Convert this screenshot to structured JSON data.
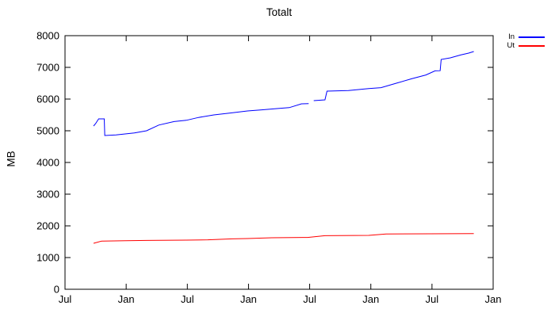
{
  "chart_data": {
    "type": "line",
    "title": "Totalt",
    "xlabel": "",
    "ylabel": "MB",
    "xlim_months": [
      0,
      42
    ],
    "ylim": [
      0,
      8000
    ],
    "x_ticks": {
      "positions": [
        0,
        6,
        12,
        18,
        24,
        30,
        36,
        42
      ],
      "labels": [
        "Jul",
        "Jan",
        "Jul",
        "Jan",
        "Jul",
        "Jan",
        "Jul",
        "Jan"
      ]
    },
    "y_ticks": [
      0,
      1000,
      2000,
      3000,
      4000,
      5000,
      6000,
      7000,
      8000
    ],
    "grid": false,
    "legend_position": "outside-top-right",
    "series": [
      {
        "name": "In",
        "color": "#0000ff",
        "points": [
          [
            2.8,
            5150
          ],
          [
            3.0,
            5225
          ],
          [
            3.3,
            5375
          ],
          [
            3.85,
            5375
          ],
          [
            3.9,
            4850
          ],
          [
            5.0,
            4870
          ],
          [
            5.9,
            4900
          ],
          [
            6.8,
            4930
          ],
          [
            8.0,
            5000
          ],
          [
            9.2,
            5180
          ],
          [
            10.7,
            5290
          ],
          [
            11.9,
            5330
          ],
          [
            13.1,
            5420
          ],
          [
            14.6,
            5500
          ],
          [
            16.2,
            5560
          ],
          [
            17.9,
            5625
          ],
          [
            19.3,
            5660
          ],
          [
            20.8,
            5700
          ],
          [
            22.0,
            5730
          ],
          [
            23.2,
            5850
          ],
          [
            23.9,
            5855
          ],
          null,
          [
            24.4,
            5950
          ],
          [
            25.5,
            5975
          ],
          [
            25.7,
            6250
          ],
          [
            27.8,
            6270
          ],
          [
            29.8,
            6330
          ],
          [
            31.0,
            6360
          ],
          [
            32.5,
            6500
          ],
          [
            34.0,
            6640
          ],
          [
            35.4,
            6760
          ],
          [
            36.3,
            6890
          ],
          [
            36.8,
            6895
          ],
          [
            36.9,
            7250
          ],
          [
            37.8,
            7300
          ],
          [
            38.8,
            7390
          ],
          [
            39.6,
            7450
          ],
          [
            40.1,
            7500
          ]
        ]
      },
      {
        "name": "Ut",
        "color": "#ff0000",
        "points": [
          [
            2.8,
            1450
          ],
          [
            3.6,
            1520
          ],
          [
            5.9,
            1530
          ],
          [
            8.0,
            1540
          ],
          [
            11.9,
            1550
          ],
          [
            14.0,
            1560
          ],
          [
            16.4,
            1590
          ],
          [
            17.9,
            1600
          ],
          [
            20.3,
            1625
          ],
          [
            23.8,
            1635
          ],
          [
            25.5,
            1690
          ],
          [
            29.8,
            1700
          ],
          [
            31.5,
            1745
          ],
          [
            35.8,
            1750
          ],
          [
            40.1,
            1755
          ]
        ]
      }
    ]
  },
  "colors": {
    "background": "#ffffff",
    "axis": "#000000",
    "in_line": "#0000ff",
    "ut_line": "#ff0000"
  }
}
